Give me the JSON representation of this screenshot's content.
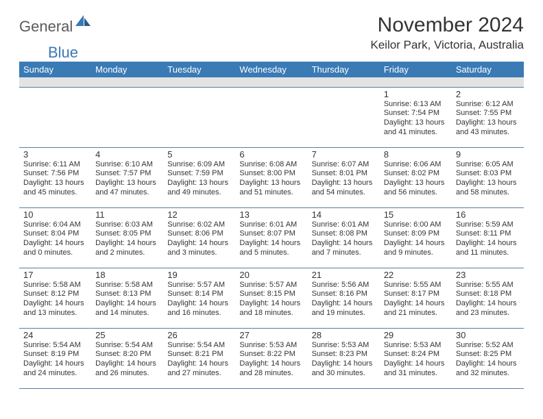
{
  "logo": {
    "general": "General",
    "blue": "Blue"
  },
  "title": "November 2024",
  "location": "Keilor Park, Victoria, Australia",
  "colors": {
    "header_bg": "#3a7ab5",
    "header_fg": "#ffffff",
    "spacer_bg": "#e3e3e3",
    "rule": "#5a7aa0",
    "text": "#333333",
    "logo_gray": "#5a5a5a",
    "logo_blue": "#3a78b5"
  },
  "dow": [
    "Sunday",
    "Monday",
    "Tuesday",
    "Wednesday",
    "Thursday",
    "Friday",
    "Saturday"
  ],
  "weeks": [
    [
      null,
      null,
      null,
      null,
      null,
      {
        "n": "1",
        "sr": "6:13 AM",
        "ss": "7:54 PM",
        "dl": "13 hours and 41 minutes."
      },
      {
        "n": "2",
        "sr": "6:12 AM",
        "ss": "7:55 PM",
        "dl": "13 hours and 43 minutes."
      }
    ],
    [
      {
        "n": "3",
        "sr": "6:11 AM",
        "ss": "7:56 PM",
        "dl": "13 hours and 45 minutes."
      },
      {
        "n": "4",
        "sr": "6:10 AM",
        "ss": "7:57 PM",
        "dl": "13 hours and 47 minutes."
      },
      {
        "n": "5",
        "sr": "6:09 AM",
        "ss": "7:59 PM",
        "dl": "13 hours and 49 minutes."
      },
      {
        "n": "6",
        "sr": "6:08 AM",
        "ss": "8:00 PM",
        "dl": "13 hours and 51 minutes."
      },
      {
        "n": "7",
        "sr": "6:07 AM",
        "ss": "8:01 PM",
        "dl": "13 hours and 54 minutes."
      },
      {
        "n": "8",
        "sr": "6:06 AM",
        "ss": "8:02 PM",
        "dl": "13 hours and 56 minutes."
      },
      {
        "n": "9",
        "sr": "6:05 AM",
        "ss": "8:03 PM",
        "dl": "13 hours and 58 minutes."
      }
    ],
    [
      {
        "n": "10",
        "sr": "6:04 AM",
        "ss": "8:04 PM",
        "dl": "14 hours and 0 minutes."
      },
      {
        "n": "11",
        "sr": "6:03 AM",
        "ss": "8:05 PM",
        "dl": "14 hours and 2 minutes."
      },
      {
        "n": "12",
        "sr": "6:02 AM",
        "ss": "8:06 PM",
        "dl": "14 hours and 3 minutes."
      },
      {
        "n": "13",
        "sr": "6:01 AM",
        "ss": "8:07 PM",
        "dl": "14 hours and 5 minutes."
      },
      {
        "n": "14",
        "sr": "6:01 AM",
        "ss": "8:08 PM",
        "dl": "14 hours and 7 minutes."
      },
      {
        "n": "15",
        "sr": "6:00 AM",
        "ss": "8:09 PM",
        "dl": "14 hours and 9 minutes."
      },
      {
        "n": "16",
        "sr": "5:59 AM",
        "ss": "8:11 PM",
        "dl": "14 hours and 11 minutes."
      }
    ],
    [
      {
        "n": "17",
        "sr": "5:58 AM",
        "ss": "8:12 PM",
        "dl": "14 hours and 13 minutes."
      },
      {
        "n": "18",
        "sr": "5:58 AM",
        "ss": "8:13 PM",
        "dl": "14 hours and 14 minutes."
      },
      {
        "n": "19",
        "sr": "5:57 AM",
        "ss": "8:14 PM",
        "dl": "14 hours and 16 minutes."
      },
      {
        "n": "20",
        "sr": "5:57 AM",
        "ss": "8:15 PM",
        "dl": "14 hours and 18 minutes."
      },
      {
        "n": "21",
        "sr": "5:56 AM",
        "ss": "8:16 PM",
        "dl": "14 hours and 19 minutes."
      },
      {
        "n": "22",
        "sr": "5:55 AM",
        "ss": "8:17 PM",
        "dl": "14 hours and 21 minutes."
      },
      {
        "n": "23",
        "sr": "5:55 AM",
        "ss": "8:18 PM",
        "dl": "14 hours and 23 minutes."
      }
    ],
    [
      {
        "n": "24",
        "sr": "5:54 AM",
        "ss": "8:19 PM",
        "dl": "14 hours and 24 minutes."
      },
      {
        "n": "25",
        "sr": "5:54 AM",
        "ss": "8:20 PM",
        "dl": "14 hours and 26 minutes."
      },
      {
        "n": "26",
        "sr": "5:54 AM",
        "ss": "8:21 PM",
        "dl": "14 hours and 27 minutes."
      },
      {
        "n": "27",
        "sr": "5:53 AM",
        "ss": "8:22 PM",
        "dl": "14 hours and 28 minutes."
      },
      {
        "n": "28",
        "sr": "5:53 AM",
        "ss": "8:23 PM",
        "dl": "14 hours and 30 minutes."
      },
      {
        "n": "29",
        "sr": "5:53 AM",
        "ss": "8:24 PM",
        "dl": "14 hours and 31 minutes."
      },
      {
        "n": "30",
        "sr": "5:52 AM",
        "ss": "8:25 PM",
        "dl": "14 hours and 32 minutes."
      }
    ]
  ],
  "labels": {
    "sunrise": "Sunrise: ",
    "sunset": "Sunset: ",
    "daylight": "Daylight: "
  }
}
